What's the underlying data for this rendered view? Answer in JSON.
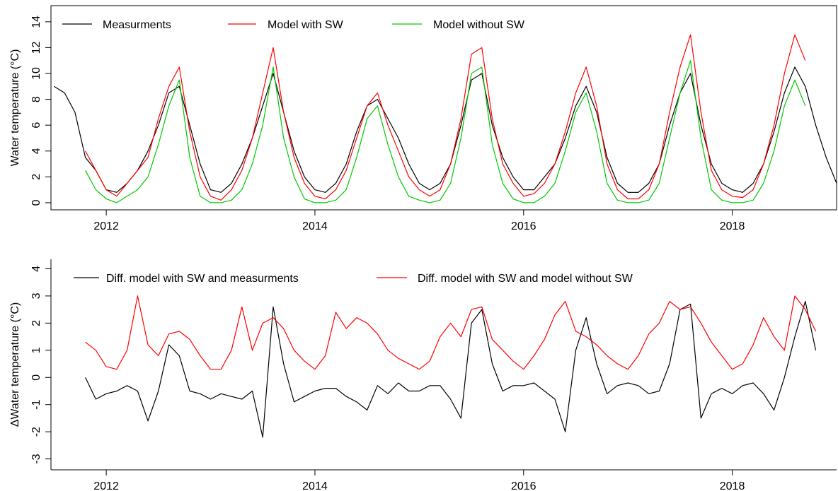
{
  "chart_data": [
    {
      "type": "line",
      "ylabel": "Water temperature (°C)",
      "box": true,
      "legend": "top",
      "x": [
        2011.5,
        2011.6,
        2011.7,
        2011.8,
        2011.9,
        2012.0,
        2012.1,
        2012.2,
        2012.3,
        2012.4,
        2012.5,
        2012.6,
        2012.7,
        2012.8,
        2012.9,
        2013.0,
        2013.1,
        2013.2,
        2013.3,
        2013.4,
        2013.5,
        2013.6,
        2013.7,
        2013.8,
        2013.9,
        2014.0,
        2014.1,
        2014.2,
        2014.3,
        2014.4,
        2014.5,
        2014.6,
        2014.7,
        2014.8,
        2014.9,
        2015.0,
        2015.1,
        2015.2,
        2015.3,
        2015.4,
        2015.5,
        2015.6,
        2015.7,
        2015.8,
        2015.9,
        2016.0,
        2016.1,
        2016.2,
        2016.3,
        2016.4,
        2016.5,
        2016.6,
        2016.7,
        2016.8,
        2016.9,
        2017.0,
        2017.1,
        2017.2,
        2017.3,
        2017.4,
        2017.5,
        2017.6,
        2017.7,
        2017.8,
        2017.9,
        2018.0,
        2018.1,
        2018.2,
        2018.3,
        2018.4,
        2018.5,
        2018.6,
        2018.7,
        2018.8,
        2018.9,
        2019.0
      ],
      "series": [
        {
          "name": "Measurments",
          "color": "#000000",
          "values": [
            9,
            8.5,
            7,
            3.5,
            2.5,
            1,
            0.8,
            1.5,
            2.5,
            4,
            6,
            8.5,
            9,
            6,
            3,
            1,
            0.8,
            1.5,
            3,
            5,
            7.5,
            10,
            7,
            4,
            2,
            1,
            0.8,
            1.5,
            3,
            5.5,
            7.5,
            8,
            6.5,
            5,
            3,
            1.5,
            1,
            1.5,
            3,
            6,
            9.5,
            10,
            6,
            3.5,
            2,
            1,
            1,
            2,
            3,
            5,
            7.5,
            9,
            7,
            3.5,
            1.5,
            0.8,
            0.8,
            1.5,
            3,
            6,
            8.5,
            10,
            6,
            3,
            1.5,
            1,
            0.8,
            1.5,
            3,
            5.5,
            8.5,
            10.5,
            9,
            6,
            3.5,
            1.5
          ]
        },
        {
          "name": "Model with SW",
          "color": "#ff0000",
          "values": [
            null,
            null,
            null,
            4,
            2.5,
            1,
            0.5,
            1.5,
            2.5,
            3.5,
            6.5,
            9,
            10.5,
            5.5,
            2,
            0.5,
            0.2,
            1,
            2.5,
            5,
            8.5,
            12,
            7,
            3.5,
            1.5,
            0.5,
            0.3,
            1,
            2.5,
            5,
            7.5,
            8.5,
            6,
            4,
            2,
            1,
            0.5,
            1,
            3,
            6.5,
            11.5,
            12,
            6.5,
            3,
            1.5,
            0.5,
            0.7,
            1.5,
            3,
            5.5,
            8.5,
            10.5,
            7.5,
            3,
            1,
            0.3,
            0.3,
            1,
            3,
            7,
            10.5,
            13,
            7,
            2.5,
            1,
            0.5,
            0.4,
            1,
            3,
            6,
            10,
            13,
            11,
            null,
            null,
            null
          ]
        },
        {
          "name": "Model without SW",
          "color": "#00c800",
          "values": [
            null,
            null,
            null,
            2.5,
            1,
            0.3,
            0,
            0.5,
            1,
            2,
            4.5,
            7.5,
            9.5,
            3.5,
            0.5,
            0,
            0,
            0.2,
            1,
            3,
            6,
            10.5,
            5,
            2,
            0.3,
            0,
            0,
            0.2,
            1,
            3.5,
            6.5,
            7.5,
            4.5,
            2,
            0.5,
            0.2,
            0,
            0.2,
            1.5,
            5,
            10,
            10.5,
            4.5,
            1.5,
            0.3,
            0,
            0,
            0.5,
            1.5,
            4,
            7,
            8.5,
            5.5,
            1.5,
            0.2,
            0,
            0,
            0.2,
            1.5,
            5,
            8.5,
            11,
            5,
            1,
            0.2,
            0,
            0,
            0.2,
            1.5,
            4,
            7.5,
            9.5,
            7.5,
            null,
            null,
            null
          ]
        }
      ],
      "xlim": [
        2011.47,
        2019.0
      ],
      "xticks": [
        2012,
        2014,
        2016,
        2018
      ],
      "ylim": [
        -0.55,
        15.25
      ],
      "yticks": [
        0,
        2,
        4,
        6,
        8,
        10,
        12,
        14
      ]
    },
    {
      "type": "line",
      "ylabel": "ΔWater temperature (°C)",
      "box": false,
      "legend": "top",
      "x": [
        2011.8,
        2011.9,
        2012.0,
        2012.1,
        2012.2,
        2012.3,
        2012.4,
        2012.5,
        2012.6,
        2012.7,
        2012.8,
        2012.9,
        2013.0,
        2013.1,
        2013.2,
        2013.3,
        2013.4,
        2013.5,
        2013.6,
        2013.7,
        2013.8,
        2013.9,
        2014.0,
        2014.1,
        2014.2,
        2014.3,
        2014.4,
        2014.5,
        2014.6,
        2014.7,
        2014.8,
        2014.9,
        2015.0,
        2015.1,
        2015.2,
        2015.3,
        2015.4,
        2015.5,
        2015.6,
        2015.7,
        2015.8,
        2015.9,
        2016.0,
        2016.1,
        2016.2,
        2016.3,
        2016.4,
        2016.5,
        2016.6,
        2016.7,
        2016.8,
        2016.9,
        2017.0,
        2017.1,
        2017.2,
        2017.3,
        2017.4,
        2017.5,
        2017.6,
        2017.7,
        2017.8,
        2017.9,
        2018.0,
        2018.1,
        2018.2,
        2018.3,
        2018.4,
        2018.5,
        2018.6,
        2018.7,
        2018.8
      ],
      "series": [
        {
          "name": "Diff. model with SW and measurments",
          "color": "#000000",
          "values": [
            0,
            -0.8,
            -0.6,
            -0.5,
            -0.3,
            -0.5,
            -1.6,
            -0.5,
            1.2,
            0.8,
            -0.5,
            -0.6,
            -0.8,
            -0.6,
            -0.7,
            -0.8,
            -0.5,
            -2.2,
            2.6,
            0.5,
            -0.9,
            -0.7,
            -0.5,
            -0.4,
            -0.4,
            -0.7,
            -0.9,
            -1.2,
            -0.3,
            -0.6,
            -0.2,
            -0.5,
            -0.5,
            -0.3,
            -0.3,
            -0.8,
            -1.5,
            2.0,
            2.5,
            0.5,
            -0.5,
            -0.3,
            -0.3,
            -0.2,
            -0.5,
            -0.8,
            -2.0,
            1.0,
            2.2,
            0.5,
            -0.6,
            -0.3,
            -0.2,
            -0.3,
            -0.6,
            -0.5,
            0.5,
            2.5,
            2.7,
            -1.5,
            -0.6,
            -0.4,
            -0.6,
            -0.3,
            -0.2,
            -0.6,
            -1.2,
            0,
            1.5,
            2.8,
            1.0
          ]
        },
        {
          "name": "Diff. model with SW and model without SW",
          "color": "#ff0000",
          "values": [
            1.3,
            1.0,
            0.4,
            0.3,
            1.0,
            3.0,
            1.2,
            0.8,
            1.6,
            1.7,
            1.4,
            0.8,
            0.3,
            0.3,
            1.0,
            2.6,
            1.0,
            2.0,
            2.2,
            1.8,
            1.0,
            0.6,
            0.3,
            0.8,
            2.4,
            1.8,
            2.2,
            2.0,
            1.6,
            1.0,
            0.7,
            0.5,
            0.3,
            0.6,
            1.5,
            2.0,
            1.5,
            2.5,
            2.6,
            1.4,
            1.0,
            0.6,
            0.3,
            0.8,
            1.4,
            2.3,
            2.8,
            1.7,
            1.5,
            1.2,
            0.8,
            0.5,
            0.3,
            0.8,
            1.6,
            2.0,
            2.8,
            2.5,
            2.6,
            2.0,
            1.3,
            0.8,
            0.3,
            0.5,
            1.2,
            2.2,
            1.5,
            1.0,
            3.0,
            2.5,
            1.7
          ]
        }
      ],
      "xlim": [
        2011.47,
        2019.0
      ],
      "xticks": [
        2012,
        2014,
        2016,
        2018
      ],
      "ylim": [
        -3.4,
        4.35
      ],
      "yticks": [
        -3,
        -2,
        -1,
        0,
        1,
        2,
        3,
        4
      ]
    }
  ]
}
